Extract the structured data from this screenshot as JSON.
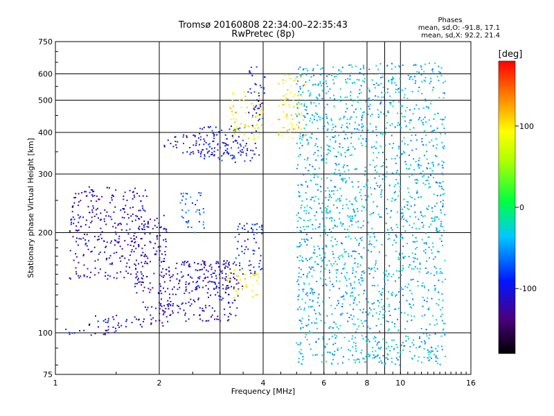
{
  "chart_data": {
    "type": "scatter",
    "title": "Tromsø 20160808 22:34:00–22:35:43",
    "subtitle": "RwPretec (8p)",
    "phase_header": "Phases",
    "phase_o": "mean, sd,O: -91.8, 17.1",
    "phase_x": "mean, sd,X:  92.2, 21.4",
    "xlabel": "Frequency [MHz]",
    "ylabel": "Stationary phase Virtual Height [km]",
    "x_scale": "log",
    "y_scale": "log",
    "xlim": [
      1,
      16
    ],
    "ylim": [
      75,
      750
    ],
    "x_ticks": [
      1,
      2,
      4,
      6,
      8,
      10,
      16
    ],
    "x_tick_labels": [
      "1",
      "2",
      "4",
      "6",
      "8",
      "10",
      "16"
    ],
    "x_grid": [
      2,
      3,
      4,
      6,
      8,
      9,
      10
    ],
    "y_ticks": [
      75,
      100,
      200,
      300,
      400,
      500,
      600,
      750
    ],
    "y_tick_labels": [
      "75",
      "100",
      "200",
      "300",
      "400",
      "500",
      "600",
      "750"
    ],
    "y_grid": [
      100,
      200,
      300,
      400,
      500,
      600
    ],
    "grid": true,
    "colorbar": {
      "label": "[deg]",
      "range": [
        -180,
        180
      ],
      "ticks": [
        100,
        0,
        -100
      ],
      "tick_labels": [
        "100",
        "0",
        "-100"
      ]
    },
    "series": [
      {
        "freq_range": [
          1.0,
          1.5
        ],
        "height_range": [
          98,
          103
        ],
        "phase_mean": -115
      },
      {
        "freq_range": [
          1.25,
          2.1
        ],
        "height_range": [
          103,
          113
        ],
        "phase_mean": -115
      },
      {
        "freq_range": [
          1.65,
          2.2
        ],
        "height_range": [
          116,
          124
        ],
        "phase_mean": -115
      },
      {
        "freq_range": [
          1.7,
          2.1
        ],
        "height_range": [
          130,
          230
        ],
        "phase_mean": -115
      },
      {
        "freq_range": [
          1.1,
          1.85
        ],
        "height_range": [
          145,
          275
        ],
        "phase_mean": -115
      },
      {
        "freq_range": [
          2.0,
          3.4
        ],
        "height_range": [
          108,
          165
        ],
        "phase_mean": -115
      },
      {
        "freq_range": [
          2.2,
          3.5
        ],
        "height_range": [
          135,
          165
        ],
        "phase_mean": -110
      },
      {
        "freq_range": [
          2.3,
          2.7
        ],
        "height_range": [
          200,
          265
        ],
        "phase_mean": -70
      },
      {
        "freq_range": [
          3.1,
          3.9
        ],
        "height_range": [
          125,
          155
        ],
        "phase_mean": 100
      },
      {
        "freq_range": [
          3.3,
          4.0
        ],
        "height_range": [
          150,
          215
        ],
        "phase_mean": -90
      },
      {
        "freq_range": [
          2.05,
          3.5
        ],
        "height_range": [
          340,
          395
        ],
        "phase_mean": -110
      },
      {
        "freq_range": [
          2.6,
          3.9
        ],
        "height_range": [
          325,
          420
        ],
        "phase_mean": -95
      },
      {
        "freq_range": [
          3.2,
          4.0
        ],
        "height_range": [
          380,
          530
        ],
        "phase_mean": 95
      },
      {
        "freq_range": [
          3.6,
          4.05
        ],
        "height_range": [
          430,
          630
        ],
        "phase_mean": -100
      },
      {
        "freq_range": [
          4.4,
          5.3
        ],
        "height_range": [
          380,
          600
        ],
        "phase_mean": 100
      },
      {
        "freq_range": [
          5.0,
          13.5
        ],
        "height_range": [
          80,
          650
        ],
        "phase_mean": -40
      }
    ]
  }
}
